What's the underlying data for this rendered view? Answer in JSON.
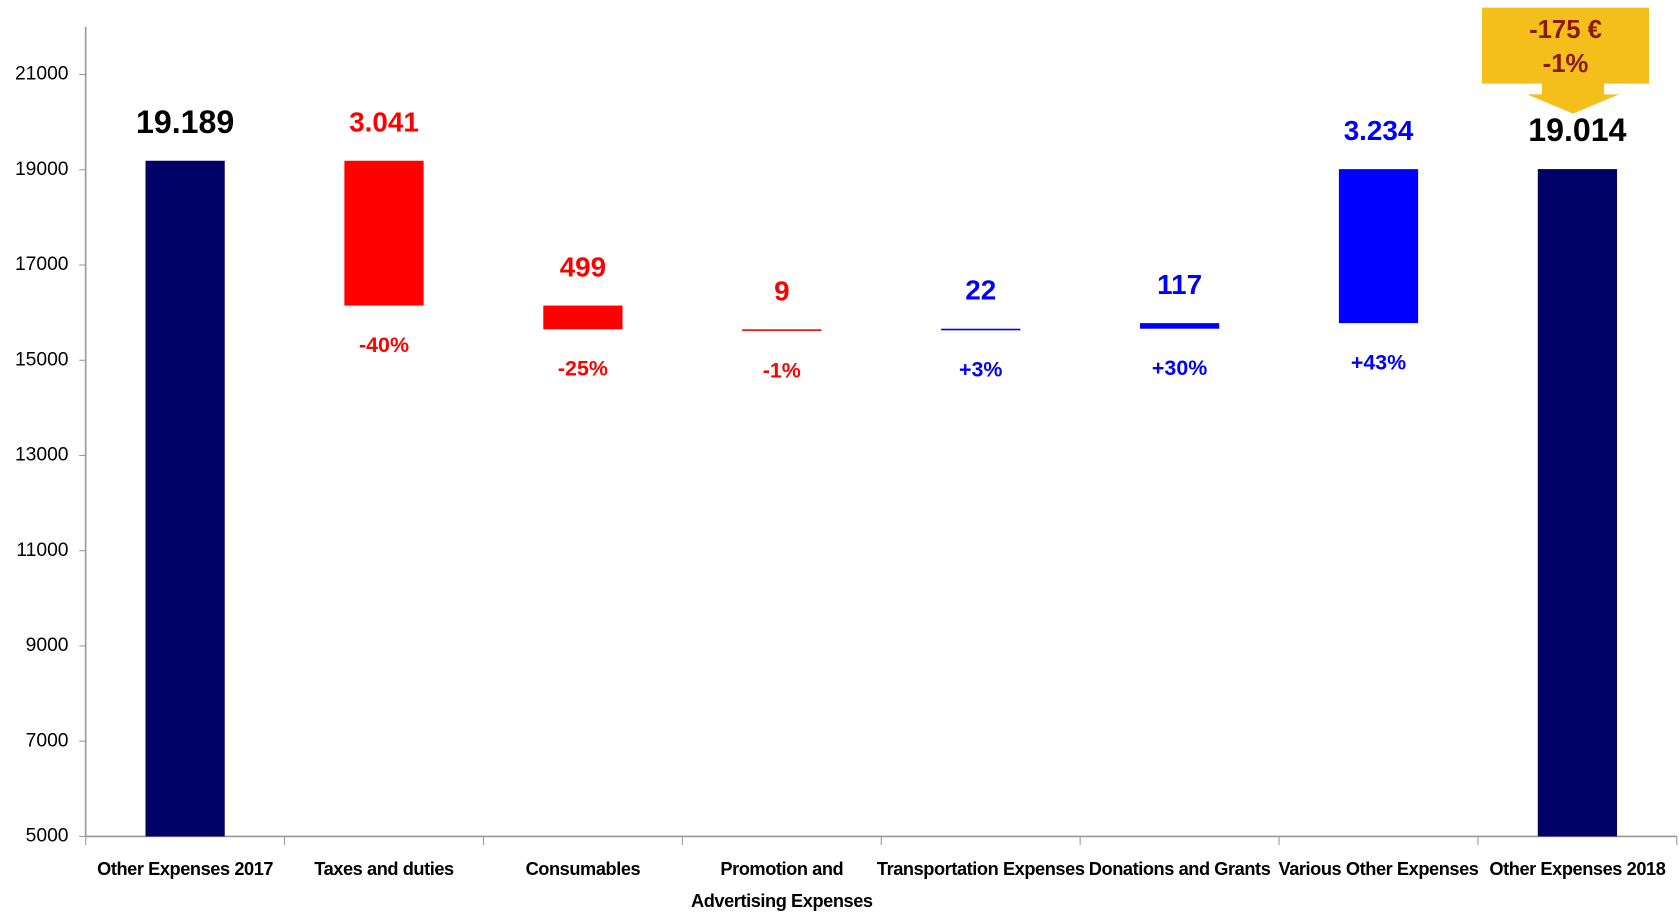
{
  "chart_data": {
    "type": "waterfall",
    "categories": [
      "Other Expenses 2017",
      "Taxes and duties",
      "Consumables",
      "Promotion and Advertising Expenses",
      "Transportation Expenses",
      "Donations and Grants",
      "Various Other Expenses",
      "Other Expenses 2018"
    ],
    "values": [
      19189,
      -3041,
      -499,
      -9,
      22,
      117,
      3234,
      19014
    ],
    "value_labels": [
      "19.189",
      "3.041",
      "499",
      "9",
      "22",
      "117",
      "3.234",
      "19.014"
    ],
    "change_labels": [
      null,
      "-40%",
      "-25%",
      "-1%",
      "+3%",
      "+30%",
      "+43%",
      null
    ],
    "colors": {
      "total": "#000066",
      "decrease": "#ff0000",
      "increase": "#0000ff"
    },
    "annotation": [
      "-175 €",
      "-1%"
    ],
    "ylim": [
      5000,
      22000
    ],
    "yticks": [
      5000,
      7000,
      9000,
      11000,
      13000,
      15000,
      17000,
      19000,
      21000
    ]
  }
}
